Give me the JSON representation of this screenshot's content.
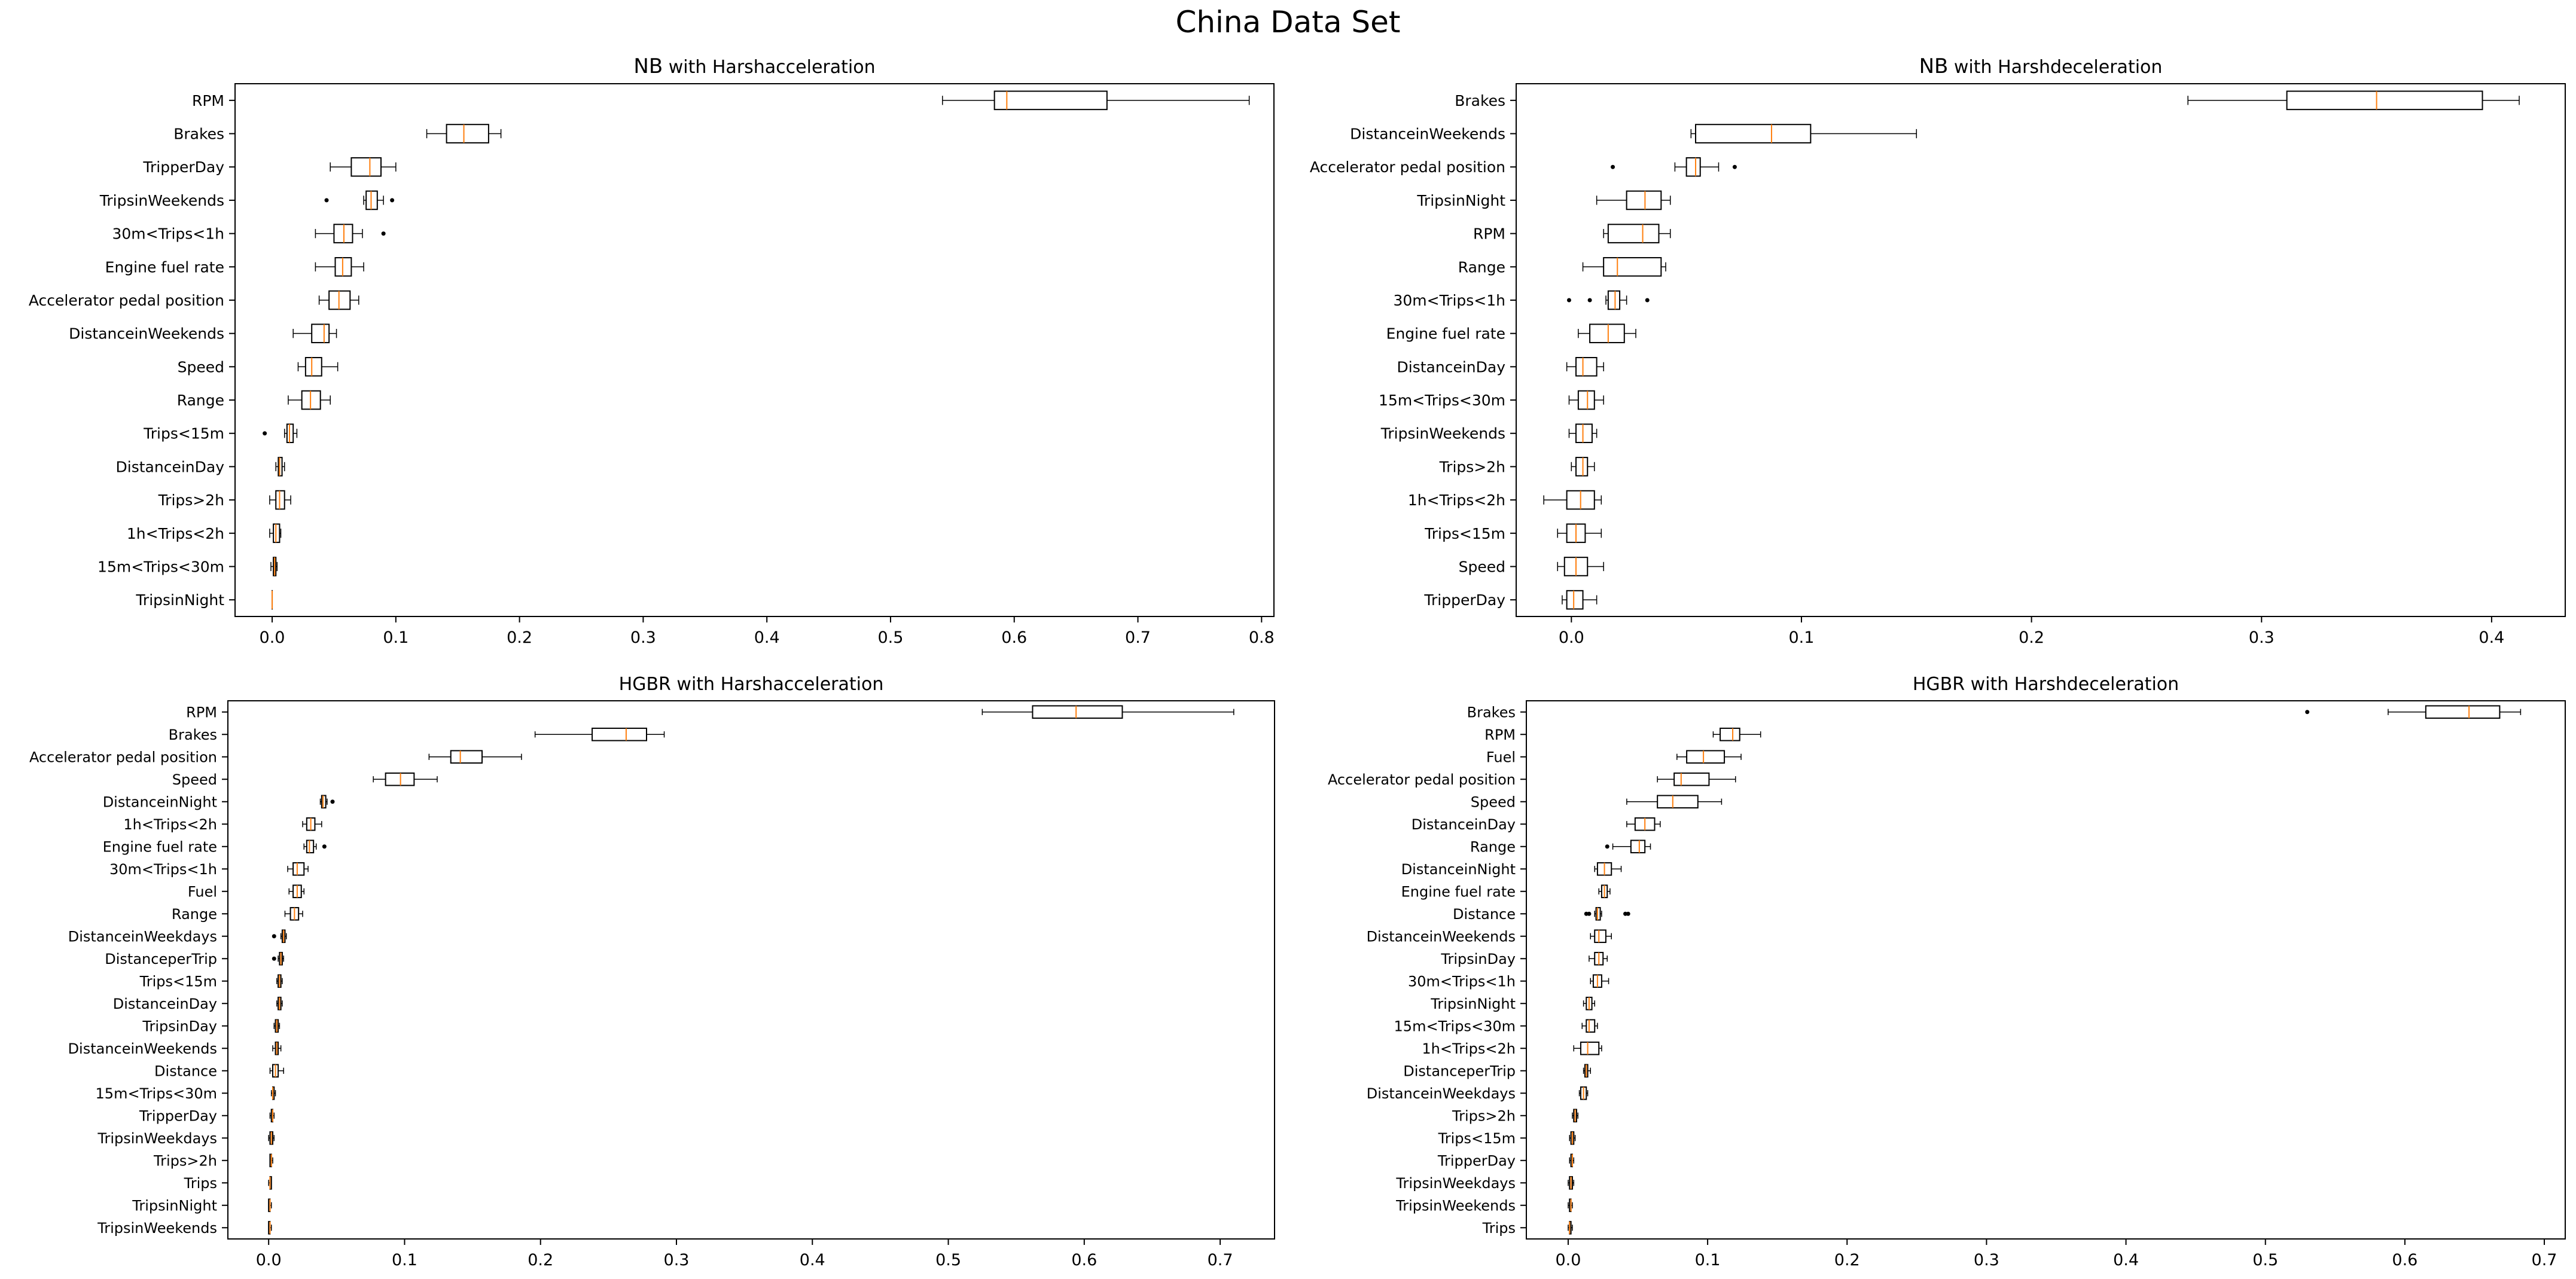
{
  "figure": {
    "title": "China Data Set"
  },
  "colors": {
    "median": "#ff7f0e",
    "box": "#000000",
    "flier": "#000000"
  },
  "chart_data": [
    {
      "type": "boxplot",
      "orientation": "horizontal",
      "title_bold": "NB",
      "title_rest": " with Harshacceleration",
      "xlim": [
        -0.03,
        0.81
      ],
      "xticks": [
        0.0,
        0.1,
        0.2,
        0.3,
        0.4,
        0.5,
        0.6,
        0.7,
        0.8
      ],
      "xtick_labels": [
        "0.0",
        "0.1",
        "0.2",
        "0.3",
        "0.4",
        "0.5",
        "0.6",
        "0.7",
        "0.8"
      ],
      "box_height": 0.55,
      "series": [
        {
          "label": "RPM",
          "wlo": 0.542,
          "q1": 0.584,
          "med": 0.594,
          "q3": 0.675,
          "whi": 0.79,
          "fliers": []
        },
        {
          "label": "Brakes",
          "wlo": 0.125,
          "q1": 0.141,
          "med": 0.155,
          "q3": 0.175,
          "whi": 0.185,
          "fliers": []
        },
        {
          "label": "TripperDay",
          "wlo": 0.047,
          "q1": 0.064,
          "med": 0.079,
          "q3": 0.088,
          "whi": 0.1,
          "fliers": []
        },
        {
          "label": "TripsinWeekends",
          "wlo": 0.074,
          "q1": 0.076,
          "med": 0.08,
          "q3": 0.085,
          "whi": 0.09,
          "fliers": [
            0.044,
            0.097
          ]
        },
        {
          "label": "30m<Trips<1h",
          "wlo": 0.035,
          "q1": 0.05,
          "med": 0.058,
          "q3": 0.065,
          "whi": 0.073,
          "fliers": [
            0.09
          ]
        },
        {
          "label": "Engine fuel rate",
          "wlo": 0.035,
          "q1": 0.051,
          "med": 0.057,
          "q3": 0.064,
          "whi": 0.074,
          "fliers": []
        },
        {
          "label": "Accelerator pedal position",
          "wlo": 0.038,
          "q1": 0.046,
          "med": 0.054,
          "q3": 0.063,
          "whi": 0.07,
          "fliers": []
        },
        {
          "label": "DistanceinWeekends",
          "wlo": 0.017,
          "q1": 0.032,
          "med": 0.042,
          "q3": 0.046,
          "whi": 0.052,
          "fliers": []
        },
        {
          "label": "Speed",
          "wlo": 0.021,
          "q1": 0.027,
          "med": 0.032,
          "q3": 0.04,
          "whi": 0.053,
          "fliers": []
        },
        {
          "label": "Range",
          "wlo": 0.013,
          "q1": 0.024,
          "med": 0.031,
          "q3": 0.039,
          "whi": 0.047,
          "fliers": []
        },
        {
          "label": "Trips<15m",
          "wlo": 0.01,
          "q1": 0.012,
          "med": 0.014,
          "q3": 0.017,
          "whi": 0.02,
          "fliers": [
            -0.006
          ]
        },
        {
          "label": "DistanceinDay",
          "wlo": 0.003,
          "q1": 0.005,
          "med": 0.006,
          "q3": 0.008,
          "whi": 0.01,
          "fliers": []
        },
        {
          "label": "Trips>2h",
          "wlo": -0.002,
          "q1": 0.003,
          "med": 0.006,
          "q3": 0.01,
          "whi": 0.015,
          "fliers": []
        },
        {
          "label": "1h<Trips<2h",
          "wlo": -0.002,
          "q1": 0.001,
          "med": 0.003,
          "q3": 0.006,
          "whi": 0.007,
          "fliers": []
        },
        {
          "label": "15m<Trips<30m",
          "wlo": -0.001,
          "q1": 0.001,
          "med": 0.002,
          "q3": 0.003,
          "whi": 0.004,
          "fliers": []
        },
        {
          "label": "TripsinNight",
          "wlo": 0.0,
          "q1": 0.0,
          "med": 0.0,
          "q3": 0.0,
          "whi": 0.0,
          "fliers": []
        }
      ]
    },
    {
      "type": "boxplot",
      "orientation": "horizontal",
      "title_bold": "NB",
      "title_rest": " with Harshdeceleration",
      "xlim": [
        -0.024,
        0.432
      ],
      "xticks": [
        0.0,
        0.1,
        0.2,
        0.3,
        0.4
      ],
      "xtick_labels": [
        "0.0",
        "0.1",
        "0.2",
        "0.3",
        "0.4"
      ],
      "box_height": 0.55,
      "series": [
        {
          "label": "Brakes",
          "wlo": 0.268,
          "q1": 0.311,
          "med": 0.35,
          "q3": 0.396,
          "whi": 0.412,
          "fliers": []
        },
        {
          "label": "DistanceinWeekends",
          "wlo": 0.052,
          "q1": 0.054,
          "med": 0.087,
          "q3": 0.104,
          "whi": 0.15,
          "fliers": []
        },
        {
          "label": "Accelerator pedal position",
          "wlo": 0.045,
          "q1": 0.05,
          "med": 0.054,
          "q3": 0.056,
          "whi": 0.064,
          "fliers": [
            0.018,
            0.071
          ]
        },
        {
          "label": "TripsinNight",
          "wlo": 0.011,
          "q1": 0.024,
          "med": 0.032,
          "q3": 0.039,
          "whi": 0.043,
          "fliers": []
        },
        {
          "label": "RPM",
          "wlo": 0.014,
          "q1": 0.016,
          "med": 0.031,
          "q3": 0.038,
          "whi": 0.043,
          "fliers": []
        },
        {
          "label": "Range",
          "wlo": 0.005,
          "q1": 0.014,
          "med": 0.02,
          "q3": 0.039,
          "whi": 0.041,
          "fliers": []
        },
        {
          "label": "30m<Trips<1h",
          "wlo": 0.015,
          "q1": 0.016,
          "med": 0.019,
          "q3": 0.021,
          "whi": 0.024,
          "fliers": [
            -0.001,
            0.008,
            0.033
          ]
        },
        {
          "label": "Engine fuel rate",
          "wlo": 0.003,
          "q1": 0.008,
          "med": 0.016,
          "q3": 0.023,
          "whi": 0.028,
          "fliers": []
        },
        {
          "label": "DistanceinDay",
          "wlo": -0.002,
          "q1": 0.002,
          "med": 0.005,
          "q3": 0.011,
          "whi": 0.014,
          "fliers": []
        },
        {
          "label": "15m<Trips<30m",
          "wlo": -0.001,
          "q1": 0.003,
          "med": 0.007,
          "q3": 0.01,
          "whi": 0.014,
          "fliers": []
        },
        {
          "label": "TripsinWeekends",
          "wlo": -0.001,
          "q1": 0.002,
          "med": 0.005,
          "q3": 0.009,
          "whi": 0.011,
          "fliers": []
        },
        {
          "label": "Trips>2h",
          "wlo": 0.0,
          "q1": 0.002,
          "med": 0.005,
          "q3": 0.007,
          "whi": 0.01,
          "fliers": []
        },
        {
          "label": "1h<Trips<2h",
          "wlo": -0.012,
          "q1": -0.002,
          "med": 0.004,
          "q3": 0.01,
          "whi": 0.013,
          "fliers": []
        },
        {
          "label": "Trips<15m",
          "wlo": -0.006,
          "q1": -0.002,
          "med": 0.002,
          "q3": 0.006,
          "whi": 0.013,
          "fliers": []
        },
        {
          "label": "Speed",
          "wlo": -0.006,
          "q1": -0.003,
          "med": 0.002,
          "q3": 0.007,
          "whi": 0.014,
          "fliers": []
        },
        {
          "label": "TripperDay",
          "wlo": -0.004,
          "q1": -0.002,
          "med": 0.001,
          "q3": 0.005,
          "whi": 0.011,
          "fliers": []
        }
      ]
    },
    {
      "type": "boxplot",
      "orientation": "horizontal",
      "title_bold": "",
      "title_rest": "HGBR with Harshacceleration",
      "xlim": [
        -0.03,
        0.74
      ],
      "xticks": [
        0.0,
        0.1,
        0.2,
        0.3,
        0.4,
        0.5,
        0.6,
        0.7
      ],
      "xtick_labels": [
        "0.0",
        "0.1",
        "0.2",
        "0.3",
        "0.4",
        "0.5",
        "0.6",
        "0.7"
      ],
      "box_height": 0.55,
      "series": [
        {
          "label": "RPM",
          "wlo": 0.525,
          "q1": 0.562,
          "med": 0.594,
          "q3": 0.628,
          "whi": 0.71,
          "fliers": []
        },
        {
          "label": "Brakes",
          "wlo": 0.196,
          "q1": 0.238,
          "med": 0.263,
          "q3": 0.278,
          "whi": 0.291,
          "fliers": []
        },
        {
          "label": "Accelerator pedal position",
          "wlo": 0.118,
          "q1": 0.134,
          "med": 0.141,
          "q3": 0.157,
          "whi": 0.186,
          "fliers": []
        },
        {
          "label": "Speed",
          "wlo": 0.077,
          "q1": 0.086,
          "med": 0.097,
          "q3": 0.107,
          "whi": 0.124,
          "fliers": []
        },
        {
          "label": "DistanceinNight",
          "wlo": 0.038,
          "q1": 0.039,
          "med": 0.04,
          "q3": 0.042,
          "whi": 0.043,
          "fliers": [
            0.047
          ]
        },
        {
          "label": "1h<Trips<2h",
          "wlo": 0.025,
          "q1": 0.028,
          "med": 0.031,
          "q3": 0.034,
          "whi": 0.039,
          "fliers": []
        },
        {
          "label": "Engine fuel rate",
          "wlo": 0.026,
          "q1": 0.028,
          "med": 0.03,
          "q3": 0.033,
          "whi": 0.035,
          "fliers": [
            0.041
          ]
        },
        {
          "label": "30m<Trips<1h",
          "wlo": 0.014,
          "q1": 0.018,
          "med": 0.021,
          "q3": 0.026,
          "whi": 0.029,
          "fliers": []
        },
        {
          "label": "Fuel",
          "wlo": 0.015,
          "q1": 0.018,
          "med": 0.021,
          "q3": 0.024,
          "whi": 0.026,
          "fliers": []
        },
        {
          "label": "Range",
          "wlo": 0.012,
          "q1": 0.016,
          "med": 0.019,
          "q3": 0.022,
          "whi": 0.025,
          "fliers": []
        },
        {
          "label": "DistanceinWeekdays",
          "wlo": 0.009,
          "q1": 0.01,
          "med": 0.011,
          "q3": 0.012,
          "whi": 0.013,
          "fliers": [
            0.004
          ]
        },
        {
          "label": "DistanceperTrip",
          "wlo": 0.007,
          "q1": 0.008,
          "med": 0.009,
          "q3": 0.01,
          "whi": 0.011,
          "fliers": [
            0.004
          ]
        },
        {
          "label": "Trips<15m",
          "wlo": 0.006,
          "q1": 0.007,
          "med": 0.008,
          "q3": 0.009,
          "whi": 0.01,
          "fliers": []
        },
        {
          "label": "DistanceinDay",
          "wlo": 0.006,
          "q1": 0.007,
          "med": 0.008,
          "q3": 0.009,
          "whi": 0.01,
          "fliers": []
        },
        {
          "label": "TripsinDay",
          "wlo": 0.004,
          "q1": 0.005,
          "med": 0.006,
          "q3": 0.007,
          "whi": 0.008,
          "fliers": []
        },
        {
          "label": "DistanceinWeekends",
          "wlo": 0.003,
          "q1": 0.005,
          "med": 0.006,
          "q3": 0.007,
          "whi": 0.009,
          "fliers": []
        },
        {
          "label": "Distance",
          "wlo": 0.001,
          "q1": 0.003,
          "med": 0.005,
          "q3": 0.007,
          "whi": 0.011,
          "fliers": []
        },
        {
          "label": "15m<Trips<30m",
          "wlo": 0.002,
          "q1": 0.003,
          "med": 0.003,
          "q3": 0.004,
          "whi": 0.005,
          "fliers": []
        },
        {
          "label": "TripperDay",
          "wlo": 0.001,
          "q1": 0.002,
          "med": 0.003,
          "q3": 0.003,
          "whi": 0.004,
          "fliers": []
        },
        {
          "label": "TripsinWeekdays",
          "wlo": 0.0,
          "q1": 0.001,
          "med": 0.002,
          "q3": 0.003,
          "whi": 0.004,
          "fliers": []
        },
        {
          "label": "Trips>2h",
          "wlo": 0.001,
          "q1": 0.001,
          "med": 0.002,
          "q3": 0.002,
          "whi": 0.003,
          "fliers": []
        },
        {
          "label": "Trips",
          "wlo": 0.0,
          "q1": 0.001,
          "med": 0.001,
          "q3": 0.002,
          "whi": 0.002,
          "fliers": []
        },
        {
          "label": "TripsinNight",
          "wlo": 0.0,
          "q1": 0.0,
          "med": 0.001,
          "q3": 0.001,
          "whi": 0.002,
          "fliers": []
        },
        {
          "label": "TripsinWeekends",
          "wlo": 0.0,
          "q1": 0.0,
          "med": 0.001,
          "q3": 0.001,
          "whi": 0.002,
          "fliers": []
        }
      ]
    },
    {
      "type": "boxplot",
      "orientation": "horizontal",
      "title_bold": "",
      "title_rest": "HGBR with Harshdeceleration",
      "xlim": [
        -0.03,
        0.715
      ],
      "xticks": [
        0.0,
        0.1,
        0.2,
        0.3,
        0.4,
        0.5,
        0.6,
        0.7
      ],
      "xtick_labels": [
        "0.0",
        "0.1",
        "0.2",
        "0.3",
        "0.4",
        "0.5",
        "0.6",
        "0.7"
      ],
      "box_height": 0.55,
      "series": [
        {
          "label": "Brakes",
          "wlo": 0.588,
          "q1": 0.615,
          "med": 0.646,
          "q3": 0.668,
          "whi": 0.683,
          "fliers": [
            0.53
          ]
        },
        {
          "label": "RPM",
          "wlo": 0.104,
          "q1": 0.109,
          "med": 0.118,
          "q3": 0.123,
          "whi": 0.138,
          "fliers": []
        },
        {
          "label": "Fuel",
          "wlo": 0.078,
          "q1": 0.085,
          "med": 0.097,
          "q3": 0.112,
          "whi": 0.124,
          "fliers": []
        },
        {
          "label": "Accelerator pedal position",
          "wlo": 0.064,
          "q1": 0.076,
          "med": 0.081,
          "q3": 0.101,
          "whi": 0.12,
          "fliers": []
        },
        {
          "label": "Speed",
          "wlo": 0.042,
          "q1": 0.064,
          "med": 0.075,
          "q3": 0.093,
          "whi": 0.11,
          "fliers": []
        },
        {
          "label": "DistanceinDay",
          "wlo": 0.042,
          "q1": 0.048,
          "med": 0.055,
          "q3": 0.062,
          "whi": 0.066,
          "fliers": []
        },
        {
          "label": "Range",
          "wlo": 0.032,
          "q1": 0.045,
          "med": 0.051,
          "q3": 0.055,
          "whi": 0.059,
          "fliers": [
            0.028
          ]
        },
        {
          "label": "DistanceinNight",
          "wlo": 0.019,
          "q1": 0.021,
          "med": 0.026,
          "q3": 0.031,
          "whi": 0.038,
          "fliers": []
        },
        {
          "label": "Engine fuel rate",
          "wlo": 0.022,
          "q1": 0.024,
          "med": 0.026,
          "q3": 0.028,
          "whi": 0.03,
          "fliers": []
        },
        {
          "label": "Distance",
          "wlo": 0.019,
          "q1": 0.02,
          "med": 0.021,
          "q3": 0.023,
          "whi": 0.024,
          "fliers": [
            0.013,
            0.015,
            0.041,
            0.043
          ]
        },
        {
          "label": "DistanceinWeekends",
          "wlo": 0.016,
          "q1": 0.019,
          "med": 0.022,
          "q3": 0.027,
          "whi": 0.031,
          "fliers": []
        },
        {
          "label": "TripsinDay",
          "wlo": 0.015,
          "q1": 0.019,
          "med": 0.022,
          "q3": 0.025,
          "whi": 0.028,
          "fliers": []
        },
        {
          "label": "30m<Trips<1h",
          "wlo": 0.016,
          "q1": 0.018,
          "med": 0.021,
          "q3": 0.024,
          "whi": 0.029,
          "fliers": []
        },
        {
          "label": "TripsinNight",
          "wlo": 0.011,
          "q1": 0.013,
          "med": 0.015,
          "q3": 0.017,
          "whi": 0.019,
          "fliers": []
        },
        {
          "label": "15m<Trips<30m",
          "wlo": 0.01,
          "q1": 0.013,
          "med": 0.015,
          "q3": 0.019,
          "whi": 0.021,
          "fliers": []
        },
        {
          "label": "1h<Trips<2h",
          "wlo": 0.004,
          "q1": 0.009,
          "med": 0.014,
          "q3": 0.022,
          "whi": 0.024,
          "fliers": []
        },
        {
          "label": "DistanceperTrip",
          "wlo": 0.011,
          "q1": 0.012,
          "med": 0.013,
          "q3": 0.014,
          "whi": 0.016,
          "fliers": []
        },
        {
          "label": "DistanceinWeekdays",
          "wlo": 0.008,
          "q1": 0.009,
          "med": 0.011,
          "q3": 0.013,
          "whi": 0.014,
          "fliers": []
        },
        {
          "label": "Trips>2h",
          "wlo": 0.003,
          "q1": 0.004,
          "med": 0.005,
          "q3": 0.006,
          "whi": 0.007,
          "fliers": []
        },
        {
          "label": "Trips<15m",
          "wlo": 0.001,
          "q1": 0.002,
          "med": 0.003,
          "q3": 0.004,
          "whi": 0.005,
          "fliers": []
        },
        {
          "label": "TripperDay",
          "wlo": 0.001,
          "q1": 0.002,
          "med": 0.003,
          "q3": 0.003,
          "whi": 0.004,
          "fliers": []
        },
        {
          "label": "TripsinWeekdays",
          "wlo": 0.0,
          "q1": 0.001,
          "med": 0.002,
          "q3": 0.003,
          "whi": 0.004,
          "fliers": []
        },
        {
          "label": "TripsinWeekends",
          "wlo": 0.0,
          "q1": 0.001,
          "med": 0.002,
          "q3": 0.002,
          "whi": 0.003,
          "fliers": []
        },
        {
          "label": "Trips",
          "wlo": 0.0,
          "q1": 0.001,
          "med": 0.001,
          "q3": 0.002,
          "whi": 0.003,
          "fliers": []
        }
      ]
    }
  ]
}
